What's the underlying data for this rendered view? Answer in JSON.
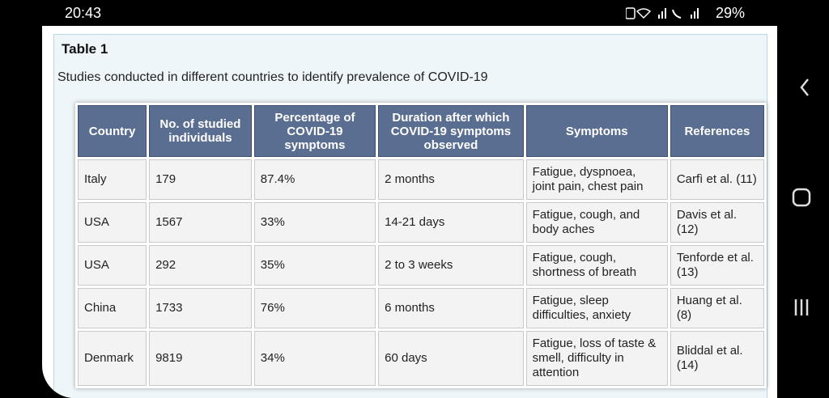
{
  "status_bar": {
    "time": "20:43",
    "battery": "29%"
  },
  "header": {
    "title": "Table 1",
    "caption": "Studies conducted in different countries to identify prevalence of COVID-19"
  },
  "table": {
    "columns": [
      "Country",
      "No. of studied individuals",
      "Percentage of COVID-19 symptoms",
      "Duration after which COVID-19 symptoms observed",
      "Symptoms",
      "References"
    ],
    "rows": [
      [
        "Italy",
        "179",
        "87.4%",
        "2 months",
        "Fatigue, dyspnoea, joint pain, chest pain",
        "Carfì et al. (11)"
      ],
      [
        "USA",
        "1567",
        "33%",
        "14-21 days",
        "Fatigue, cough, and body aches",
        "Davis et al. (12)"
      ],
      [
        "USA",
        "292",
        "35%",
        "2 to 3 weeks",
        "Fatigue, cough, shortness of breath",
        "Tenforde et al. (13)"
      ],
      [
        "China",
        "1733",
        "76%",
        "6 months",
        "Fatigue, sleep difficulties, anxiety",
        "Huang et al. (8)"
      ],
      [
        "Denmark",
        "9819",
        "34%",
        "60 days",
        "Fatigue, loss of taste & smell, difficulty in attention",
        "Bliddal et al. (14)"
      ]
    ]
  }
}
